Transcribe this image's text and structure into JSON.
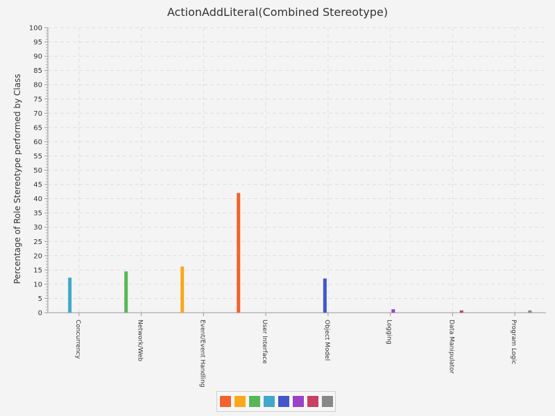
{
  "chart_data": {
    "type": "bar",
    "title": "ActionAddLiteral(Combined Stereotype)",
    "ylabel": "Percentage of Role Stereotype performed by Class",
    "xlabel": "",
    "ylim": [
      0,
      100
    ],
    "ytick_step": 5,
    "grid": true,
    "categories": [
      "Concurrency",
      "Network/Web",
      "Event/Event Handling",
      "User Interface",
      "Object Model",
      "Logging",
      "Data Manipulator",
      "Program Logic"
    ],
    "series": [
      {
        "color": "#f3622d",
        "values": [
          0,
          0,
          0,
          42,
          0,
          0,
          0,
          0
        ]
      },
      {
        "color": "#fba71b",
        "values": [
          0,
          0,
          16.2,
          0,
          0,
          0,
          0,
          0
        ]
      },
      {
        "color": "#57b757",
        "values": [
          0,
          14.5,
          0,
          0,
          0,
          0,
          0,
          0
        ]
      },
      {
        "color": "#41a9c9",
        "values": [
          12.3,
          0,
          0,
          0,
          0,
          0,
          0,
          0
        ]
      },
      {
        "color": "#4258c9",
        "values": [
          0,
          0,
          0,
          0,
          12,
          0,
          0,
          0
        ]
      },
      {
        "color": "#9a42c8",
        "values": [
          0,
          0,
          0,
          0,
          0,
          1.2,
          0,
          0
        ]
      },
      {
        "color": "#c84164",
        "values": [
          0,
          0,
          0,
          0,
          0,
          0,
          0.8,
          0
        ]
      },
      {
        "color": "#888888",
        "values": [
          0,
          0,
          0,
          0,
          0,
          0,
          0,
          0.8
        ]
      }
    ],
    "legend_position": "bottom"
  }
}
